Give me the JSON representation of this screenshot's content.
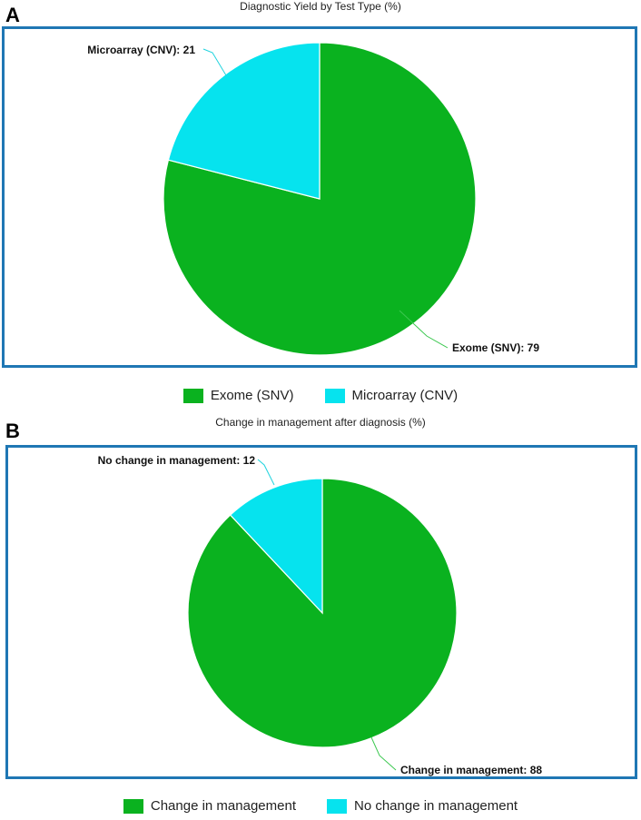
{
  "colors": {
    "frame": "#1f77b4",
    "green": "#0ab21f",
    "cyan": "#06e3ee",
    "leader_green": "#3cc850",
    "leader_cyan": "#20d3de"
  },
  "panels": [
    {
      "letter": "A",
      "title": "Diagnostic Yield by Test Type (%)"
    },
    {
      "letter": "B",
      "title": "Change in management after diagnosis (%)"
    }
  ],
  "chart_data": [
    {
      "type": "pie",
      "title": "Diagnostic Yield by Test Type (%)",
      "labels": [
        "Exome (SNV)",
        "Microarray (CNV)"
      ],
      "values": [
        79,
        21
      ],
      "colors": [
        "#0ab21f",
        "#06e3ee"
      ],
      "legend_position": "bottom",
      "slice_labels": [
        "Exome (SNV): 79",
        "Microarray (CNV): 21"
      ]
    },
    {
      "type": "pie",
      "title": "Change in management after diagnosis (%)",
      "labels": [
        "Change in management",
        "No change in management"
      ],
      "values": [
        88,
        12
      ],
      "colors": [
        "#0ab21f",
        "#06e3ee"
      ],
      "legend_position": "bottom",
      "slice_labels": [
        "Change in management: 88",
        "No change in management: 12"
      ]
    }
  ]
}
